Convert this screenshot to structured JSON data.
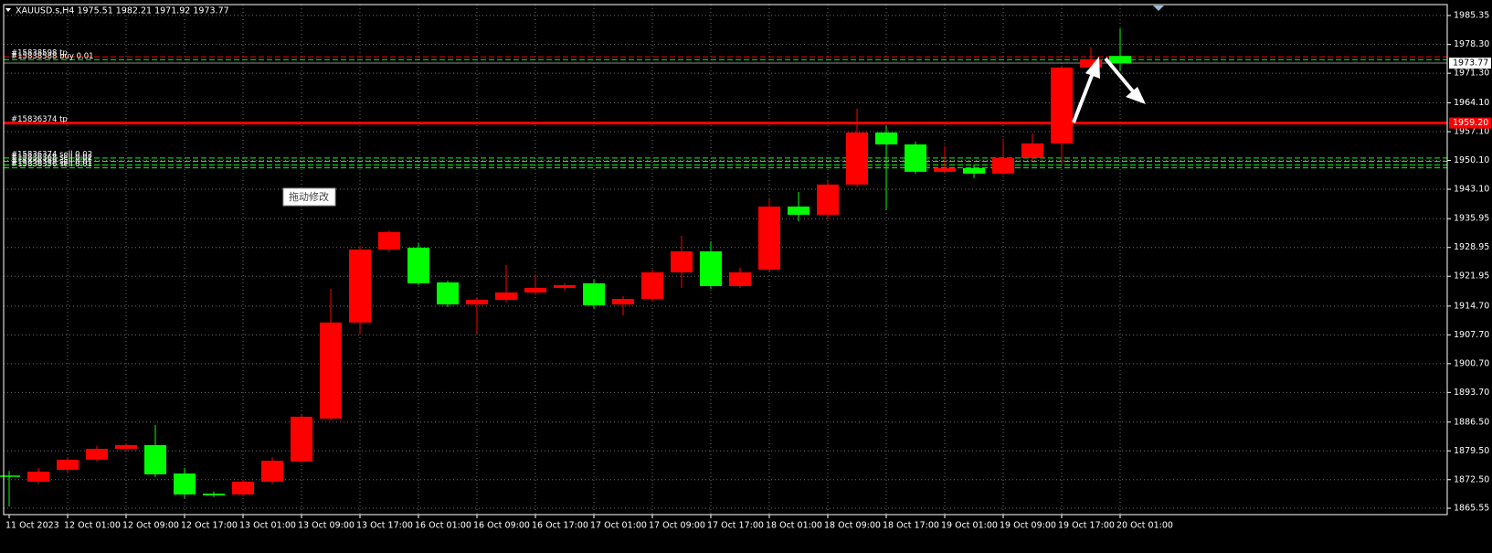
{
  "chart_data": {
    "type": "candlestick",
    "title": "XAUUSD.s,H4  1975.51 1982.21 1971.92 1973.77",
    "annotation": "拖动修改",
    "up_color": "#ff0000",
    "down_color": "#00ff00",
    "categories": [
      "11 Oct 2023",
      null,
      "12 Oct 01:00",
      null,
      "12 Oct 09:00",
      null,
      "12 Oct 17:00",
      null,
      "13 Oct 01:00",
      null,
      "13 Oct 09:00",
      null,
      "13 Oct 17:00",
      null,
      "16 Oct 01:00",
      null,
      "16 Oct 09:00",
      null,
      "16 Oct 17:00",
      null,
      "17 Oct 01:00",
      null,
      "17 Oct 09:00",
      null,
      "17 Oct 17:00",
      null,
      "18 Oct 01:00",
      null,
      "18 Oct 09:00",
      null,
      "18 Oct 17:00",
      null,
      "19 Oct 01:00",
      null,
      "19 Oct 09:00",
      null,
      "19 Oct 17:00",
      null,
      "20 Oct 01:00"
    ],
    "open": [
      1873.5,
      1872.0,
      1874.9,
      1877.35,
      1880.0,
      1880.9,
      1874.0,
      1869.1,
      1868.9,
      1872.0,
      1876.9,
      1887.35,
      1910.7,
      1928.45,
      1928.9,
      1920.45,
      1915.1,
      1916.2,
      1918.0,
      1919.1,
      1920.25,
      1915.1,
      1916.45,
      1922.9,
      1928.0,
      1919.55,
      1923.55,
      1938.9,
      1936.9,
      1944.25,
      1956.9,
      1954.0,
      1947.35,
      1948.25,
      1946.9,
      1950.7,
      1954.25,
      1972.7,
      1975.51
    ],
    "high": [
      1874.6,
      1875.35,
      1878.0,
      1880.7,
      1881.35,
      1885.8,
      1875.35,
      1869.6,
      1872.45,
      1878.0,
      1888.2,
      1918.9,
      1929.35,
      1933.1,
      1930.0,
      1920.9,
      1916.9,
      1924.7,
      1922.45,
      1920.25,
      1921.1,
      1917.1,
      1923.55,
      1931.8,
      1930.45,
      1924.0,
      1940.7,
      1942.45,
      1945.1,
      1962.7,
      1958.7,
      1954.7,
      1953.6,
      1949.1,
      1955.35,
      1956.7,
      1973.1,
      1977.6,
      1982.21
    ],
    "low": [
      1866.0,
      1871.35,
      1874.0,
      1876.9,
      1879.6,
      1873.1,
      1868.0,
      1868.25,
      1868.45,
      1871.35,
      1876.45,
      1886.9,
      1907.8,
      1927.8,
      1919.8,
      1914.45,
      1908.0,
      1915.6,
      1917.35,
      1918.45,
      1914.0,
      1912.45,
      1915.8,
      1919.1,
      1918.9,
      1919.1,
      1923.1,
      1935.35,
      1935.8,
      1943.6,
      1938.0,
      1946.9,
      1946.9,
      1945.8,
      1946.45,
      1950.0,
      1949.1,
      1972.0,
      1971.92
    ],
    "close": [
      1873.2,
      1874.45,
      1877.35,
      1880.0,
      1880.9,
      1873.8,
      1868.9,
      1868.7,
      1872.0,
      1877.1,
      1887.8,
      1910.7,
      1928.45,
      1932.7,
      1920.25,
      1915.1,
      1916.2,
      1918.0,
      1919.1,
      1919.8,
      1914.9,
      1916.45,
      1922.9,
      1928.0,
      1919.55,
      1922.9,
      1938.9,
      1936.9,
      1944.25,
      1956.9,
      1954.0,
      1947.35,
      1948.25,
      1946.9,
      1950.7,
      1954.25,
      1972.7,
      1974.7,
      1973.77
    ],
    "ylim": [
      1864.0,
      1988.0
    ],
    "yticks": [
      1985.35,
      {
        "value": 1978.3,
        "label": "1978.30"
      },
      {
        "value": 1971.3,
        "label": "1971.30"
      },
      {
        "value": 1964.1,
        "label": "1964.10"
      },
      {
        "value": 1957.1,
        "label": "1957.10"
      },
      {
        "value": 1950.1,
        "label": "1950.10"
      },
      {
        "value": 1943.1,
        "label": "1943.10"
      },
      1935.95,
      1928.95,
      1921.95,
      {
        "value": 1914.7,
        "label": "1914.70"
      },
      {
        "value": 1907.7,
        "label": "1907.70"
      },
      {
        "value": 1900.7,
        "label": "1900.70"
      },
      {
        "value": 1893.7,
        "label": "1893.70"
      },
      {
        "value": 1886.5,
        "label": "1886.50"
      },
      {
        "value": 1879.5,
        "label": "1879.50"
      },
      {
        "value": 1872.5,
        "label": "1872.50"
      },
      1865.55
    ],
    "grid": true,
    "order_lines": [
      {
        "label": "#15838598 tp",
        "price": 1975.3,
        "color": "#ff0000",
        "dashed": true
      },
      {
        "label": "#15838588 buy 0.01",
        "price": 1974.6,
        "color": "#00ff00",
        "dashed": true
      },
      {
        "label": "#15836374 tp",
        "price": 1959.2,
        "color": "#ff0000",
        "dashed": false
      },
      {
        "label": "#15836374 sell 0.02",
        "price": 1950.7,
        "color": "#00ff00",
        "dashed": true
      },
      {
        "label": "#15836368 sell 0.02",
        "price": 1949.9,
        "color": "#00ff00",
        "dashed": true
      },
      {
        "label": "#15836359 sell 0.01",
        "price": 1949.0,
        "color": "#00ff00",
        "dashed": true
      },
      {
        "label": "#15836356 sell 0.01",
        "price": 1948.3,
        "color": "#00ff00",
        "dashed": true
      }
    ],
    "price_tags": [
      {
        "price": 1973.77,
        "bg": "#ffffff",
        "fg": "#000000",
        "line": "#8a8a8a"
      },
      {
        "price": {
          "value": 1959.2,
          "label": "1959.20"
        },
        "bg": "#ff0000",
        "fg": "#ffffff",
        "line": "#ff0000"
      }
    ]
  }
}
